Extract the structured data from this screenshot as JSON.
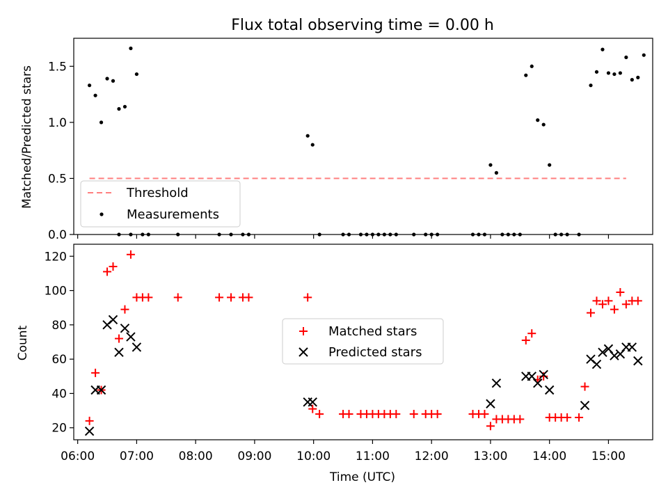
{
  "chart_data": [
    {
      "type": "scatter",
      "title": "Flux total observing time = 0.00 h",
      "ylabel": "Matched/Predicted stars",
      "ylim": [
        0,
        1.75
      ],
      "xlim": [
        "05:56",
        "15:45"
      ],
      "yticks": [
        "0.0",
        "0.5",
        "1.0",
        "1.5"
      ],
      "yvals": [
        0,
        0.5,
        1.0,
        1.5
      ],
      "threshold": {
        "name": "Threshold",
        "x": [
          "06:12",
          "15:18"
        ],
        "y": 0.5,
        "color": "#ff7f7f"
      },
      "measurements": {
        "name": "Measurements",
        "color": "#000000",
        "points": [
          [
            "06:12",
            1.33
          ],
          [
            "06:18",
            1.24
          ],
          [
            "06:24",
            1.0
          ],
          [
            "06:30",
            1.39
          ],
          [
            "06:36",
            1.37
          ],
          [
            "06:42",
            1.12
          ],
          [
            "06:48",
            1.14
          ],
          [
            "06:54",
            1.66
          ],
          [
            "07:00",
            1.43
          ],
          [
            "06:42",
            0
          ],
          [
            "06:54",
            0
          ],
          [
            "07:06",
            0
          ],
          [
            "07:12",
            0
          ],
          [
            "07:42",
            0
          ],
          [
            "08:24",
            0
          ],
          [
            "08:36",
            0
          ],
          [
            "08:54",
            0
          ],
          [
            "08:48",
            0
          ],
          [
            "09:54",
            0.88
          ],
          [
            "09:59",
            0.8
          ],
          [
            "10:06",
            0
          ],
          [
            "10:30",
            0
          ],
          [
            "10:36",
            0
          ],
          [
            "10:48",
            0
          ],
          [
            "10:54",
            0
          ],
          [
            "11:00",
            0
          ],
          [
            "11:06",
            0
          ],
          [
            "11:12",
            0
          ],
          [
            "11:18",
            0
          ],
          [
            "11:24",
            0
          ],
          [
            "11:42",
            0
          ],
          [
            "11:54",
            0
          ],
          [
            "12:00",
            0
          ],
          [
            "12:06",
            0
          ],
          [
            "12:42",
            0
          ],
          [
            "12:48",
            0
          ],
          [
            "12:54",
            0
          ],
          [
            "13:00",
            0.62
          ],
          [
            "13:06",
            0.55
          ],
          [
            "13:12",
            0
          ],
          [
            "13:18",
            0
          ],
          [
            "13:24",
            0
          ],
          [
            "13:30",
            0
          ],
          [
            "13:36",
            1.42
          ],
          [
            "13:42",
            1.5
          ],
          [
            "13:48",
            1.02
          ],
          [
            "13:54",
            0.98
          ],
          [
            "14:00",
            0.62
          ],
          [
            "14:06",
            0
          ],
          [
            "14:12",
            0
          ],
          [
            "14:18",
            0
          ],
          [
            "14:30",
            0
          ],
          [
            "14:42",
            1.33
          ],
          [
            "14:48",
            1.45
          ],
          [
            "14:54",
            1.65
          ],
          [
            "15:00",
            1.44
          ],
          [
            "15:06",
            1.43
          ],
          [
            "15:12",
            1.44
          ],
          [
            "15:18",
            1.58
          ],
          [
            "15:24",
            1.38
          ],
          [
            "15:30",
            1.4
          ],
          [
            "15:36",
            1.6
          ]
        ]
      },
      "legend": {
        "placement": "lower-left"
      }
    },
    {
      "type": "scatter",
      "xlabel": "Time (UTC)",
      "ylabel": "Count",
      "ylim": [
        13,
        127
      ],
      "xlim": [
        "05:56",
        "15:45"
      ],
      "xticks": [
        "06:00",
        "07:00",
        "08:00",
        "09:00",
        "10:00",
        "11:00",
        "12:00",
        "13:00",
        "14:00",
        "15:00"
      ],
      "yticks": [
        "20",
        "40",
        "60",
        "80",
        "100",
        "120"
      ],
      "yvals": [
        20,
        40,
        60,
        80,
        100,
        120
      ],
      "series": [
        {
          "name": "Matched stars",
          "marker": "plus",
          "color": "#ff0000",
          "points": [
            [
              "06:12",
              24
            ],
            [
              "06:18",
              52
            ],
            [
              "06:24",
              42
            ],
            [
              "06:30",
              111
            ],
            [
              "06:36",
              114
            ],
            [
              "06:42",
              72
            ],
            [
              "06:48",
              89
            ],
            [
              "06:54",
              121
            ],
            [
              "07:00",
              96
            ],
            [
              "07:06",
              96
            ],
            [
              "07:12",
              96
            ],
            [
              "07:42",
              96
            ],
            [
              "08:24",
              96
            ],
            [
              "08:36",
              96
            ],
            [
              "08:48",
              96
            ],
            [
              "08:54",
              96
            ],
            [
              "09:54",
              96
            ],
            [
              "09:59",
              31
            ],
            [
              "10:06",
              28
            ],
            [
              "10:30",
              28
            ],
            [
              "10:36",
              28
            ],
            [
              "10:48",
              28
            ],
            [
              "10:54",
              28
            ],
            [
              "11:00",
              28
            ],
            [
              "11:06",
              28
            ],
            [
              "11:12",
              28
            ],
            [
              "11:18",
              28
            ],
            [
              "11:24",
              28
            ],
            [
              "11:42",
              28
            ],
            [
              "11:54",
              28
            ],
            [
              "12:00",
              28
            ],
            [
              "12:06",
              28
            ],
            [
              "12:42",
              28
            ],
            [
              "12:48",
              28
            ],
            [
              "12:54",
              28
            ],
            [
              "13:00",
              21
            ],
            [
              "13:06",
              25
            ],
            [
              "13:12",
              25
            ],
            [
              "13:18",
              25
            ],
            [
              "13:24",
              25
            ],
            [
              "13:30",
              25
            ],
            [
              "13:36",
              71
            ],
            [
              "13:42",
              75
            ],
            [
              "13:48",
              48
            ],
            [
              "13:54",
              50
            ],
            [
              "14:00",
              26
            ],
            [
              "14:06",
              26
            ],
            [
              "14:12",
              26
            ],
            [
              "14:18",
              26
            ],
            [
              "14:30",
              26
            ],
            [
              "14:36",
              44
            ],
            [
              "14:42",
              87
            ],
            [
              "14:48",
              94
            ],
            [
              "14:54",
              92
            ],
            [
              "15:00",
              94
            ],
            [
              "15:06",
              89
            ],
            [
              "15:12",
              99
            ],
            [
              "15:18",
              92
            ],
            [
              "15:24",
              94
            ],
            [
              "15:30",
              94
            ]
          ]
        },
        {
          "name": "Predicted stars",
          "marker": "x",
          "color": "#000000",
          "points": [
            [
              "06:12",
              18
            ],
            [
              "06:18",
              42
            ],
            [
              "06:24",
              42
            ],
            [
              "06:30",
              80
            ],
            [
              "06:36",
              83
            ],
            [
              "06:42",
              64
            ],
            [
              "06:48",
              78
            ],
            [
              "06:54",
              73
            ],
            [
              "07:00",
              67
            ],
            [
              "09:54",
              35
            ],
            [
              "09:59",
              35
            ],
            [
              "13:00",
              34
            ],
            [
              "13:06",
              46
            ],
            [
              "13:36",
              50
            ],
            [
              "13:42",
              50
            ],
            [
              "13:48",
              46
            ],
            [
              "13:54",
              51
            ],
            [
              "14:00",
              42
            ],
            [
              "14:36",
              33
            ],
            [
              "14:42",
              60
            ],
            [
              "14:48",
              57
            ],
            [
              "14:54",
              64
            ],
            [
              "15:00",
              66
            ],
            [
              "15:06",
              62
            ],
            [
              "15:12",
              63
            ],
            [
              "15:18",
              67
            ],
            [
              "15:24",
              67
            ],
            [
              "15:30",
              59
            ]
          ]
        }
      ],
      "legend": {
        "placement": "center"
      }
    }
  ]
}
